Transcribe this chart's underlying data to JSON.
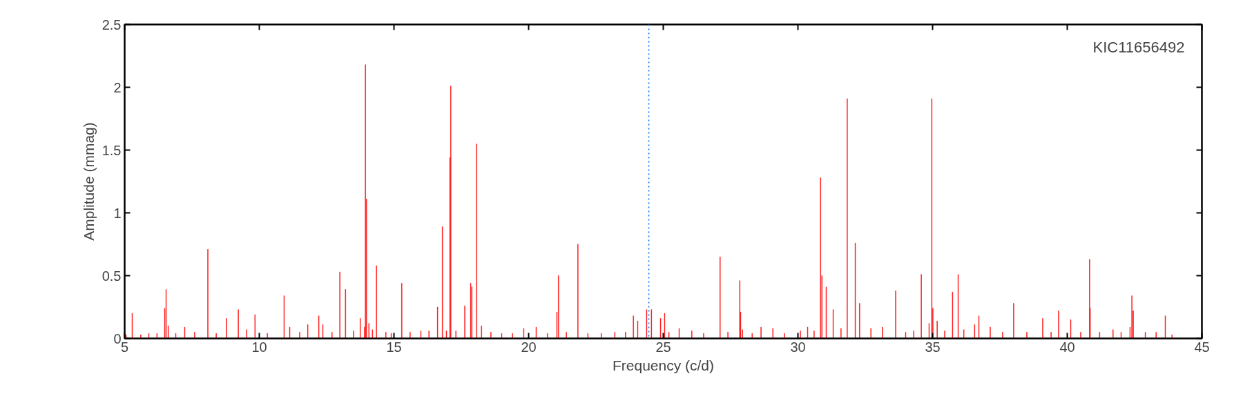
{
  "chart_data": {
    "type": "bar",
    "xlabel": "Frequency (c/d)",
    "ylabel": "Amplitude (mmag)",
    "annotations": [
      "KIC11656492"
    ],
    "x": [
      5.05,
      5.28,
      5.6,
      5.9,
      6.2,
      6.49,
      6.54,
      6.62,
      6.9,
      7.23,
      7.6,
      8.09,
      8.4,
      8.78,
      9.22,
      9.53,
      9.84,
      10.3,
      10.92,
      11.13,
      11.5,
      11.8,
      12.21,
      12.36,
      12.7,
      12.99,
      13.2,
      13.5,
      13.75,
      13.91,
      13.94,
      13.98,
      14.07,
      14.2,
      14.35,
      14.7,
      14.9,
      15.29,
      15.6,
      16.0,
      16.3,
      16.62,
      16.8,
      16.95,
      17.08,
      17.11,
      17.3,
      17.63,
      17.85,
      17.89,
      18.07,
      18.25,
      18.6,
      19.0,
      19.4,
      19.82,
      20.28,
      20.7,
      21.05,
      21.11,
      21.4,
      21.83,
      22.2,
      22.7,
      23.2,
      23.6,
      23.89,
      24.05,
      24.38,
      24.56,
      24.9,
      25.05,
      25.21,
      25.59,
      26.06,
      26.5,
      27.11,
      27.4,
      27.84,
      27.87,
      27.94,
      28.3,
      28.63,
      29.07,
      29.5,
      30.09,
      30.36,
      30.6,
      30.84,
      30.89,
      31.05,
      31.31,
      31.6,
      31.83,
      32.13,
      32.29,
      32.71,
      33.14,
      33.63,
      34.0,
      34.3,
      34.58,
      34.87,
      34.97,
      35.01,
      35.17,
      35.45,
      35.74,
      35.95,
      36.16,
      36.56,
      36.72,
      37.14,
      37.6,
      38.01,
      38.5,
      39.09,
      39.4,
      39.68,
      40.13,
      40.5,
      40.83,
      40.85,
      41.2,
      41.7,
      42.0,
      42.33,
      42.4,
      42.45,
      42.9,
      43.3,
      43.64,
      43.89
    ],
    "values": [
      0.03,
      0.2,
      0.03,
      0.04,
      0.04,
      0.24,
      0.39,
      0.1,
      0.04,
      0.09,
      0.05,
      0.71,
      0.04,
      0.16,
      0.23,
      0.07,
      0.19,
      0.04,
      0.34,
      0.09,
      0.05,
      0.11,
      0.18,
      0.11,
      0.05,
      0.53,
      0.39,
      0.06,
      0.16,
      0.09,
      2.18,
      1.11,
      0.12,
      0.07,
      0.58,
      0.05,
      0.04,
      0.44,
      0.05,
      0.06,
      0.06,
      0.25,
      0.89,
      0.06,
      1.44,
      2.01,
      0.06,
      0.26,
      0.44,
      0.41,
      1.55,
      0.1,
      0.05,
      0.04,
      0.04,
      0.08,
      0.09,
      0.04,
      0.21,
      0.5,
      0.05,
      0.75,
      0.04,
      0.04,
      0.05,
      0.05,
      0.18,
      0.14,
      0.23,
      0.23,
      0.16,
      0.2,
      0.05,
      0.08,
      0.06,
      0.04,
      0.65,
      0.05,
      0.46,
      0.21,
      0.07,
      0.04,
      0.09,
      0.08,
      0.04,
      0.06,
      0.09,
      0.06,
      1.28,
      0.5,
      0.41,
      0.23,
      0.08,
      1.91,
      0.76,
      0.28,
      0.08,
      0.09,
      0.38,
      0.05,
      0.06,
      0.51,
      0.12,
      1.91,
      0.24,
      0.14,
      0.06,
      0.37,
      0.51,
      0.07,
      0.11,
      0.18,
      0.09,
      0.05,
      0.28,
      0.05,
      0.16,
      0.05,
      0.22,
      0.15,
      0.05,
      0.63,
      0.24,
      0.05,
      0.07,
      0.05,
      0.09,
      0.34,
      0.22,
      0.05,
      0.05,
      0.18,
      0.03
    ],
    "color": "#ff0000",
    "xlim": [
      5,
      45
    ],
    "xticks": [
      5,
      10,
      15,
      20,
      25,
      30,
      35,
      40,
      45
    ],
    "ylim": [
      0,
      2.5
    ],
    "yticks": [
      0,
      0.5,
      1,
      1.5,
      2,
      2.5
    ],
    "ref_lines": [
      {
        "axis": "x",
        "value": 24.46,
        "color": "#1e88ff",
        "line_style": "dotted"
      }
    ],
    "grid": false
  }
}
